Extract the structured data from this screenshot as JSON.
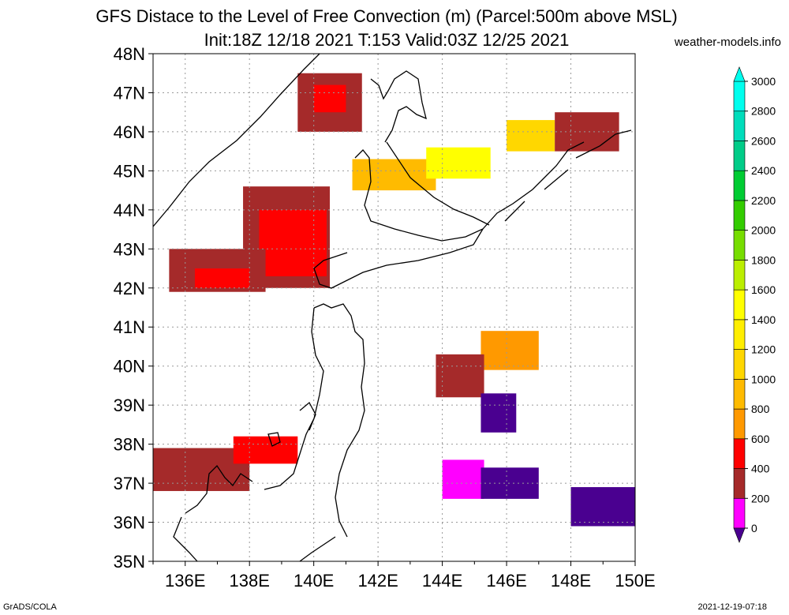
{
  "title": {
    "line1": "GFS Distace to the Level of Free Convection (m) (Parcel:500m above MSL)",
    "line2": "Init:18Z 12/18 2021 T:153 Valid:03Z 12/25 2021"
  },
  "site": "weather-models.info",
  "footer": {
    "left": "GrADS/COLA",
    "right": "2021-12-19-07:18"
  },
  "map": {
    "lat_range": [
      35,
      48
    ],
    "lon_range": [
      135,
      150
    ],
    "lat_labels": [
      "35N",
      "36N",
      "37N",
      "38N",
      "39N",
      "40N",
      "41N",
      "42N",
      "43N",
      "44N",
      "45N",
      "46N",
      "47N",
      "48N"
    ],
    "lon_labels": [
      "136E",
      "138E",
      "140E",
      "142E",
      "144E",
      "146E",
      "148E",
      "150E"
    ],
    "lon_values": [
      136,
      138,
      140,
      142,
      144,
      146,
      148,
      150
    ],
    "grid": true
  },
  "colorbar": {
    "labels": [
      "0",
      "200",
      "400",
      "600",
      "800",
      "1000",
      "1200",
      "1400",
      "1600",
      "1800",
      "2000",
      "2200",
      "2400",
      "2600",
      "2800",
      "3000"
    ],
    "colors": [
      "#4a0090",
      "#ff00ff",
      "#a52a2a",
      "#ff0000",
      "#ff9900",
      "#ffbb00",
      "#ffd700",
      "#ffee00",
      "#ffff00",
      "#bbee00",
      "#77dd00",
      "#33cc00",
      "#00cc33",
      "#00cc88",
      "#00ddbb",
      "#00ffee"
    ],
    "top_color": "#00ffee",
    "bottom_color": "#4a0090"
  },
  "chart_data": {
    "type": "heatmap",
    "units": "m",
    "levels": [
      0,
      200,
      400,
      600,
      800,
      1000,
      1200,
      1400,
      1600
    ],
    "regions": [
      {
        "lon": [
          139.5,
          141.5
        ],
        "lat": [
          46.0,
          47.5
        ],
        "level": 400
      },
      {
        "lon": [
          140.0,
          141.0
        ],
        "lat": [
          46.5,
          47.2
        ],
        "level": 600
      },
      {
        "lon": [
          137.8,
          140.5
        ],
        "lat": [
          42.0,
          44.6
        ],
        "level": 400
      },
      {
        "lon": [
          138.3,
          140.4
        ],
        "lat": [
          42.3,
          44.0
        ],
        "level": 600
      },
      {
        "lon": [
          135.5,
          138.5
        ],
        "lat": [
          41.9,
          43.0
        ],
        "level": 400
      },
      {
        "lon": [
          136.3,
          138.0
        ],
        "lat": [
          42.0,
          42.5
        ],
        "level": 600
      },
      {
        "lon": [
          141.2,
          143.8
        ],
        "lat": [
          44.5,
          45.3
        ],
        "level": 1000
      },
      {
        "lon": [
          143.5,
          145.5
        ],
        "lat": [
          44.8,
          45.6
        ],
        "level": 1600
      },
      {
        "lon": [
          146.0,
          147.5
        ],
        "lat": [
          45.5,
          46.3
        ],
        "level": 1200
      },
      {
        "lon": [
          145.2,
          147.0
        ],
        "lat": [
          39.9,
          40.9
        ],
        "level": 800
      },
      {
        "lon": [
          143.8,
          145.3
        ],
        "lat": [
          39.2,
          40.3
        ],
        "level": 400
      },
      {
        "lon": [
          145.2,
          146.3
        ],
        "lat": [
          38.3,
          39.3
        ],
        "level": 0
      },
      {
        "lon": [
          135.0,
          138.0
        ],
        "lat": [
          36.8,
          37.9
        ],
        "level": 400
      },
      {
        "lon": [
          137.5,
          139.5
        ],
        "lat": [
          37.5,
          38.2
        ],
        "level": 600
      },
      {
        "lon": [
          144.0,
          145.3
        ],
        "lat": [
          36.6,
          37.6
        ],
        "level": 200
      },
      {
        "lon": [
          145.2,
          147.0
        ],
        "lat": [
          36.6,
          37.4
        ],
        "level": 0
      },
      {
        "lon": [
          148.0,
          150.0
        ],
        "lat": [
          35.9,
          36.9
        ],
        "level": 0
      },
      {
        "lon": [
          147.5,
          149.5
        ],
        "lat": [
          45.5,
          46.5
        ],
        "level": 400
      }
    ]
  }
}
